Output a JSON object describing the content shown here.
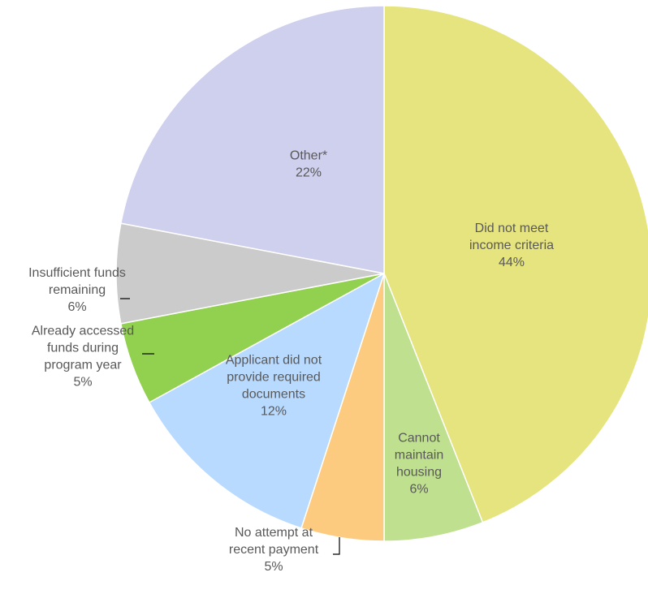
{
  "chart_data": {
    "type": "pie",
    "start_angle_deg": 0,
    "direction": "clockwise",
    "slices": [
      {
        "lines": [
          "Did not meet",
          "income criteria"
        ],
        "pct_label": "44%",
        "value": 44,
        "color": "#e6e47e"
      },
      {
        "lines": [
          "Cannot",
          "maintain",
          "housing"
        ],
        "pct_label": "6%",
        "value": 6,
        "color": "#bfe08e"
      },
      {
        "lines": [
          "No attempt at",
          "recent payment"
        ],
        "pct_label": "5%",
        "value": 5,
        "color": "#fdcb7f"
      },
      {
        "lines": [
          "Applicant did not",
          "provide required",
          "documents"
        ],
        "pct_label": "12%",
        "value": 12,
        "color": "#b9daff"
      },
      {
        "lines": [
          "Already accessed",
          "funds during",
          "program year"
        ],
        "pct_label": "5%",
        "value": 5,
        "color": "#92d050"
      },
      {
        "lines": [
          "Insufficient funds",
          "remaining"
        ],
        "pct_label": "6%",
        "value": 6,
        "color": "#cbcbcb"
      },
      {
        "lines": [
          "Other*"
        ],
        "pct_label": "22%",
        "value": 22,
        "color": "#cfcfee"
      }
    ]
  }
}
